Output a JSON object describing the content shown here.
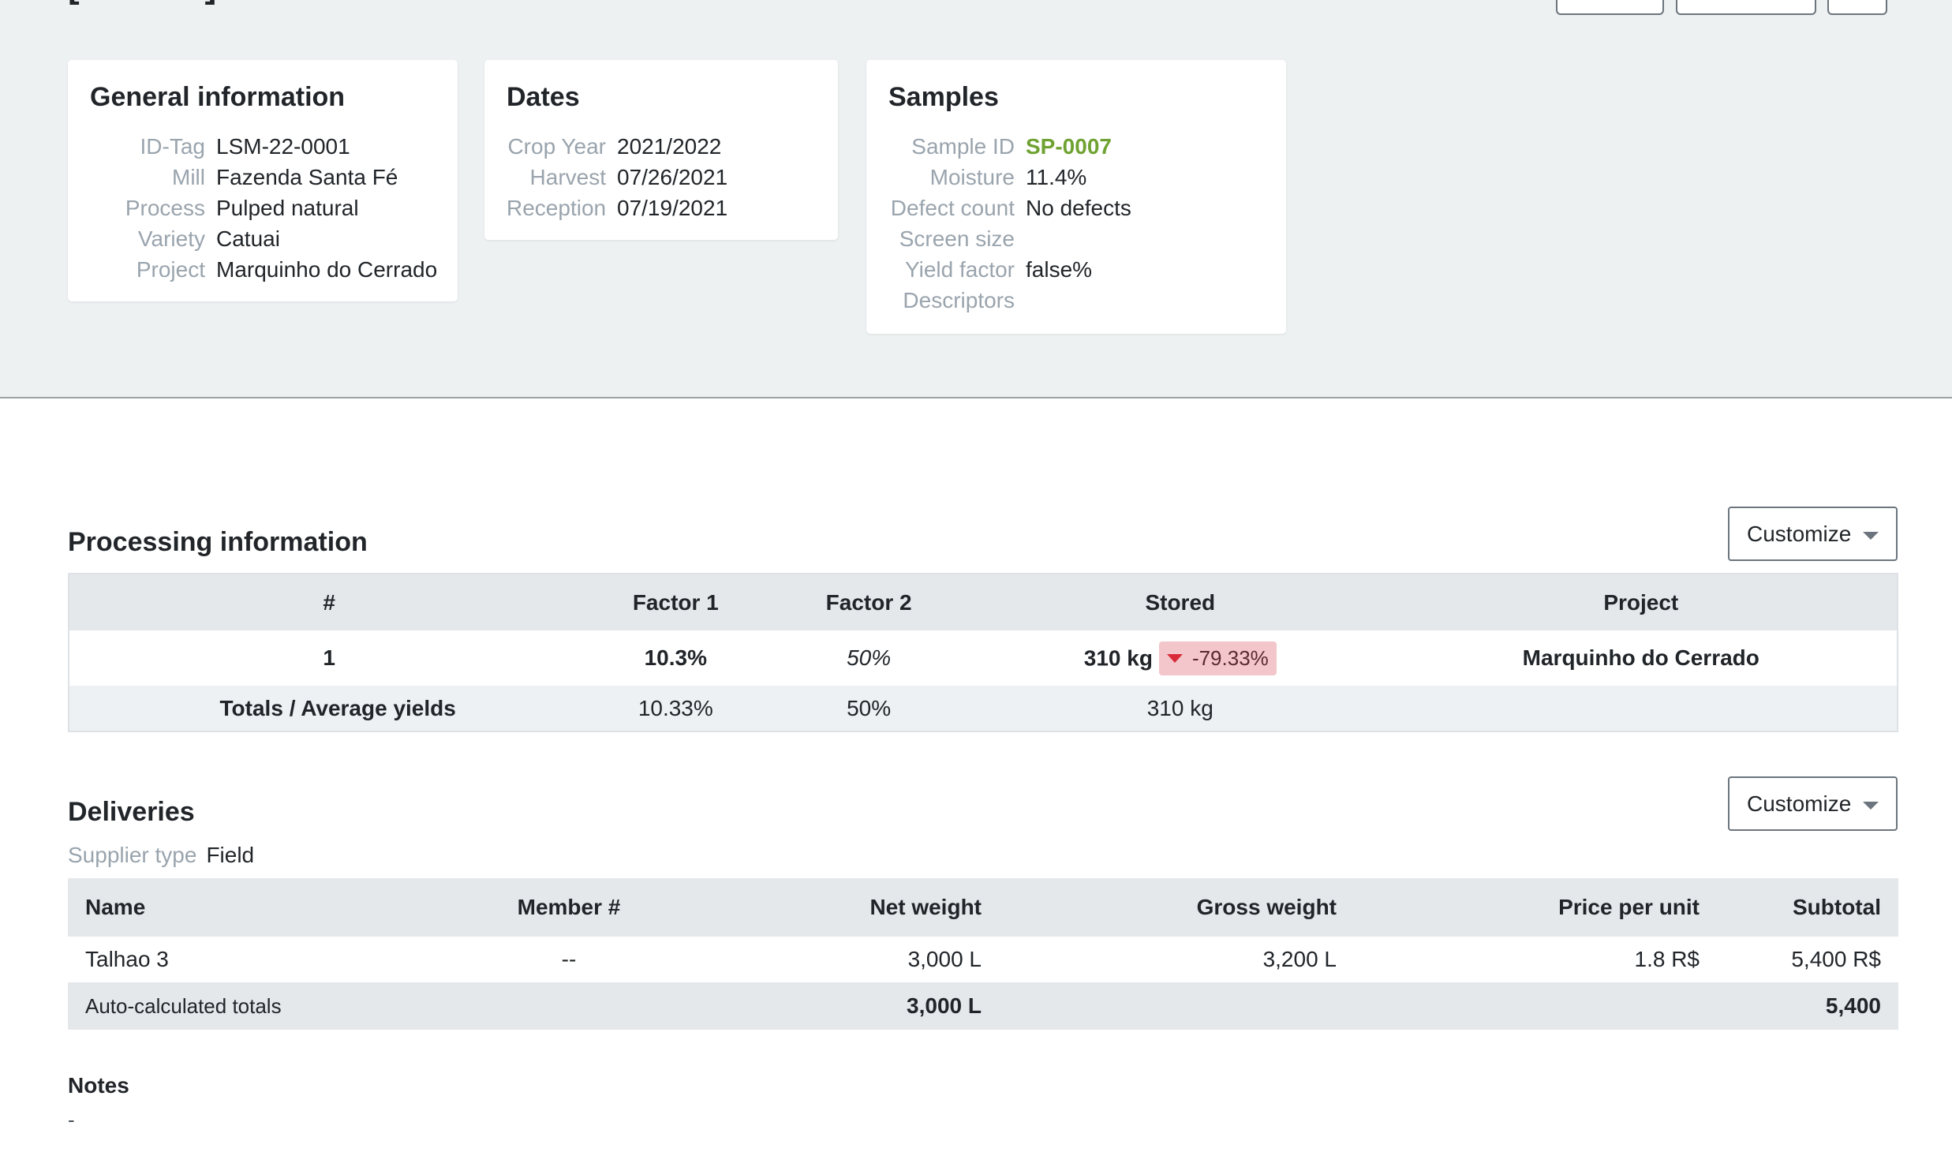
{
  "general": {
    "title": "General information",
    "rows": [
      {
        "label": "ID-Tag",
        "value": "LSM-22-0001"
      },
      {
        "label": "Mill",
        "value": "Fazenda Santa Fé"
      },
      {
        "label": "Process",
        "value": "Pulped natural"
      },
      {
        "label": "Variety",
        "value": "Catuai"
      },
      {
        "label": "Project",
        "value": "Marquinho do Cerrado"
      }
    ]
  },
  "dates": {
    "title": "Dates",
    "rows": [
      {
        "label": "Crop Year",
        "value": "2021/2022"
      },
      {
        "label": "Harvest",
        "value": "07/26/2021"
      },
      {
        "label": "Reception",
        "value": "07/19/2021"
      }
    ]
  },
  "samples": {
    "title": "Samples",
    "rows": [
      {
        "label": "Sample ID",
        "value": "SP-0007"
      },
      {
        "label": "Moisture",
        "value": "11.4%"
      },
      {
        "label": "Defect count",
        "value": "No defects"
      },
      {
        "label": "Screen size",
        "value": ""
      },
      {
        "label": "Yield factor",
        "value": "false%"
      },
      {
        "label": "Descriptors",
        "value": ""
      }
    ]
  },
  "processing": {
    "title": "Processing information",
    "customize_label": "Customize",
    "headers": [
      "#",
      "Factor 1",
      "Factor 2",
      "Stored",
      "Project"
    ],
    "row": {
      "num": "1",
      "factor1": "10.3%",
      "factor2": "50%",
      "stored": "310 kg",
      "change": "-79.33%",
      "project": "Marquinho do Cerrado"
    },
    "totals": {
      "label": "Totals / Average yields",
      "factor1": "10.33%",
      "factor2": "50%",
      "stored": "310 kg"
    }
  },
  "deliveries": {
    "title": "Deliveries",
    "customize_label": "Customize",
    "supplier_label": "Supplier type",
    "supplier_value": "Field",
    "headers": [
      "Name",
      "Member #",
      "Net weight",
      "Gross weight",
      "Price per unit",
      "Subtotal"
    ],
    "row": {
      "name": "Talhao 3",
      "member": "--",
      "net": "3,000 L",
      "gross": "3,200 L",
      "price": "1.8 R$",
      "subtotal": "5,400 R$"
    },
    "totals": {
      "label": "Auto-calculated totals",
      "net": "3,000 L",
      "subtotal": "5,400"
    }
  },
  "notes": {
    "title": "Notes",
    "value": "-"
  },
  "colors": {
    "header_bg": "#eef1f2",
    "link_green": "#6fa232",
    "badge_bg": "#f2c6ca",
    "badge_arrow": "#d92b3a"
  }
}
